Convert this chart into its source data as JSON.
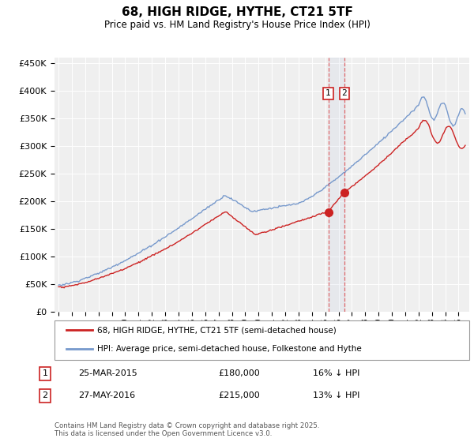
{
  "title": "68, HIGH RIDGE, HYTHE, CT21 5TF",
  "subtitle": "Price paid vs. HM Land Registry's House Price Index (HPI)",
  "ylim": [
    0,
    460000
  ],
  "yticks": [
    0,
    50000,
    100000,
    150000,
    200000,
    250000,
    300000,
    350000,
    400000,
    450000
  ],
  "line1_color": "#cc2222",
  "line2_color": "#7799cc",
  "purchase1_year": 2015.23,
  "purchase1_price": 180000,
  "purchase1_date": "25-MAR-2015",
  "purchase1_label": "16% ↓ HPI",
  "purchase2_year": 2016.42,
  "purchase2_price": 215000,
  "purchase2_date": "27-MAY-2016",
  "purchase2_label": "13% ↓ HPI",
  "legend1_label": "68, HIGH RIDGE, HYTHE, CT21 5TF (semi-detached house)",
  "legend2_label": "HPI: Average price, semi-detached house, Folkestone and Hythe",
  "footer": "Contains HM Land Registry data © Crown copyright and database right 2025.\nThis data is licensed under the Open Government Licence v3.0.",
  "background_color": "#ffffff",
  "plot_bg_color": "#efefef",
  "xmin": 1994.7,
  "xmax": 2025.8
}
